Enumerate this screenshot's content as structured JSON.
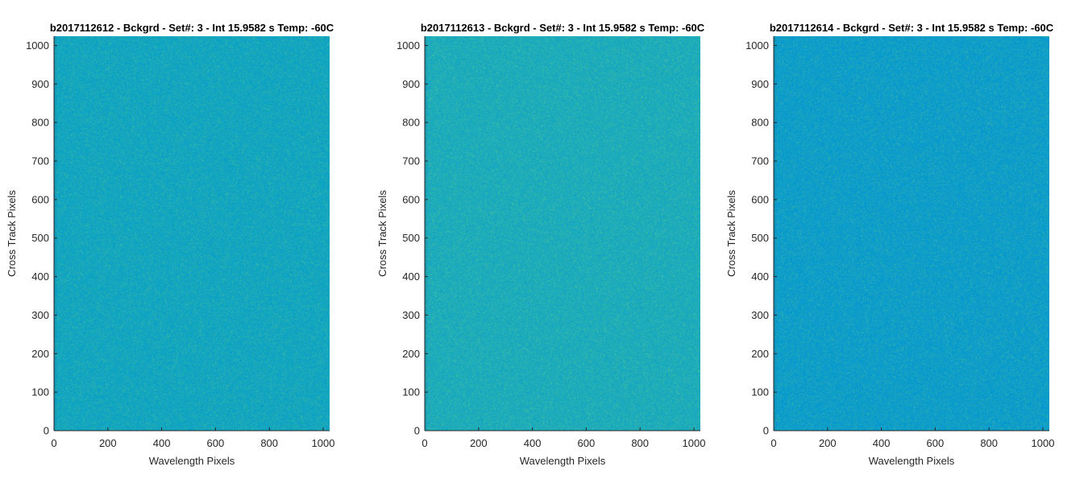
{
  "chart_data": [
    {
      "type": "heatmap",
      "title": "b2017112612 - Bckgrd - Set#: 3 - Int 15.9582 s Temp: -60C",
      "xlabel": "Wavelength Pixels",
      "ylabel": "Cross Track Pixels",
      "xlim": [
        0,
        1024
      ],
      "ylim": [
        0,
        1024
      ],
      "xticks": [
        0,
        200,
        400,
        600,
        800,
        1000
      ],
      "yticks": [
        0,
        100,
        200,
        300,
        400,
        500,
        600,
        700,
        800,
        900,
        1000
      ],
      "base_color": "#14a6c0",
      "grid": false
    },
    {
      "type": "heatmap",
      "title": "b2017112613 - Bckgrd - Set#: 3 - Int 15.9582 s Temp: -60C",
      "xlabel": "Wavelength Pixels",
      "ylabel": "Cross Track Pixels",
      "xlim": [
        0,
        1024
      ],
      "ylim": [
        0,
        1024
      ],
      "xticks": [
        0,
        200,
        400,
        600,
        800,
        1000
      ],
      "yticks": [
        0,
        100,
        200,
        300,
        400,
        500,
        600,
        700,
        800,
        900,
        1000
      ],
      "base_color": "#1eacbb",
      "grid": false
    },
    {
      "type": "heatmap",
      "title": "b2017112614 - Bckgrd - Set#: 3 - Int 15.9582 s Temp: -60C",
      "xlabel": "Wavelength Pixels",
      "ylabel": "Cross Track Pixels",
      "xlim": [
        0,
        1024
      ],
      "ylim": [
        0,
        1024
      ],
      "xticks": [
        0,
        200,
        400,
        600,
        800,
        1000
      ],
      "yticks": [
        0,
        100,
        200,
        300,
        400,
        500,
        600,
        700,
        800,
        900,
        1000
      ],
      "base_color": "#0f9ec9",
      "grid": false
    }
  ]
}
